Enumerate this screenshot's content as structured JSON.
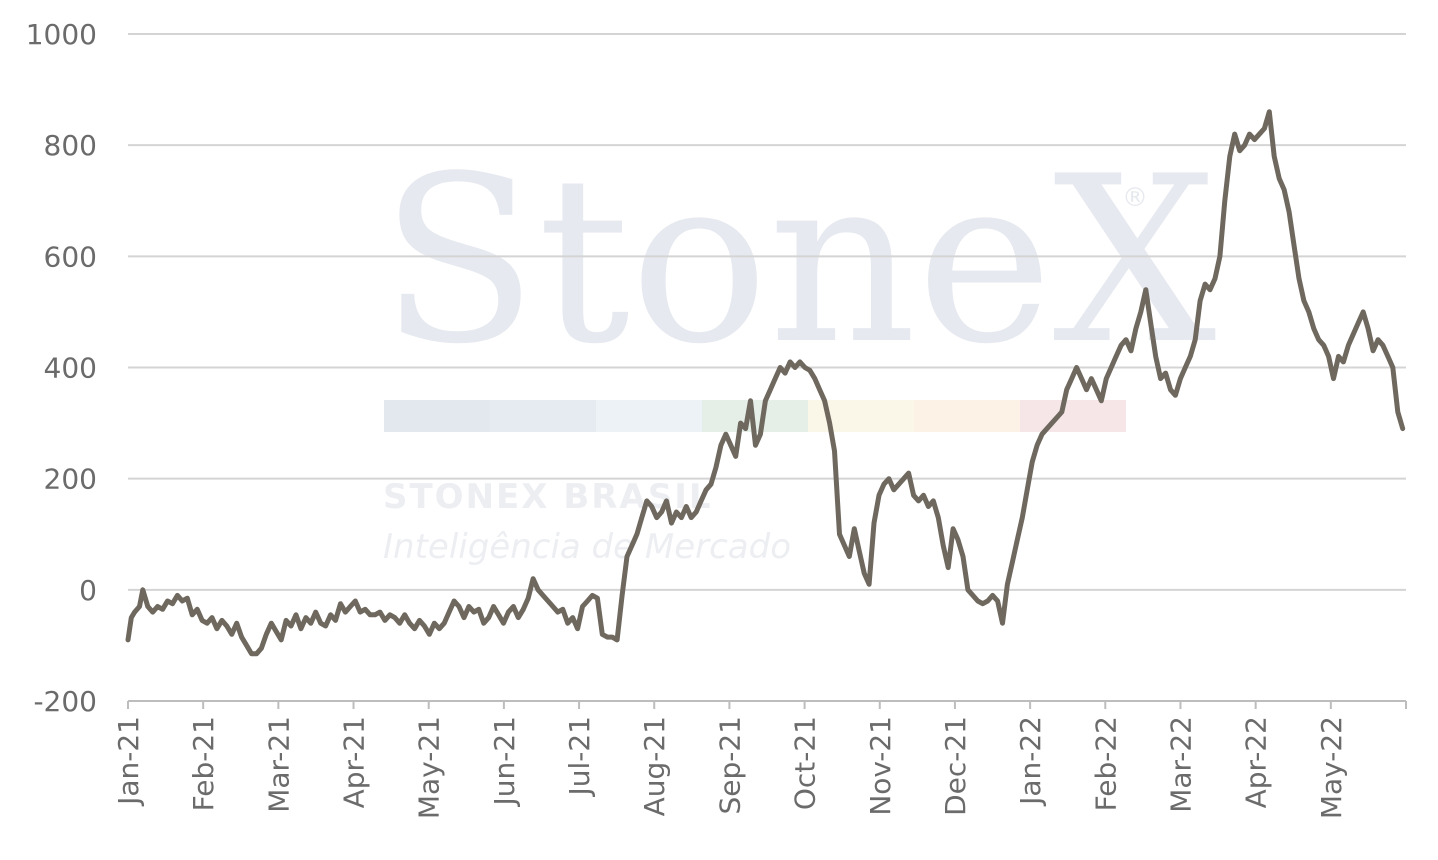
{
  "watermark": {
    "logo": "StoneX",
    "registered": "®",
    "line1": "STONEX BRASIL",
    "line2": "Inteligência de Mercado",
    "colors": [
      "#e3e7ee",
      "#e6ebf1",
      "#edf2f7",
      "#e5eee7",
      "#fbf7e8",
      "#fdf2e6",
      "#f6e6e8"
    ]
  },
  "chart_data": {
    "type": "line",
    "title": "",
    "xlabel": "",
    "ylabel": "",
    "ylim": [
      -200,
      1000
    ],
    "yticks": [
      -200,
      0,
      200,
      400,
      600,
      800,
      1000
    ],
    "ytick_labels": [
      "-200",
      "0",
      "200",
      "400",
      "600",
      "800",
      "1000"
    ],
    "xtick_labels": [
      "Jan-21",
      "Feb-21",
      "Mar-21",
      "Apr-21",
      "May-21",
      "Jun-21",
      "Jul-21",
      "Aug-21",
      "Sep-21",
      "Oct-21",
      "Nov-21",
      "Dec-21",
      "Jan-22",
      "Feb-22",
      "Mar-22",
      "Apr-22",
      "May-22"
    ],
    "grid": true,
    "line_color": "#6e685e",
    "series": [
      {
        "values": [
          [
            0,
            -90
          ],
          [
            0.2,
            -50
          ],
          [
            0.4,
            -40
          ],
          [
            0.7,
            -30
          ],
          [
            0.9,
            0
          ],
          [
            1.2,
            -30
          ],
          [
            1.5,
            -40
          ],
          [
            1.8,
            -30
          ],
          [
            2.1,
            -35
          ],
          [
            2.4,
            -20
          ],
          [
            2.7,
            -25
          ],
          [
            3.0,
            -10
          ],
          [
            3.3,
            -20
          ],
          [
            3.6,
            -15
          ],
          [
            3.9,
            -45
          ],
          [
            4.2,
            -35
          ],
          [
            4.5,
            -55
          ],
          [
            4.8,
            -60
          ],
          [
            5.1,
            -50
          ],
          [
            5.4,
            -70
          ],
          [
            5.7,
            -55
          ],
          [
            6.0,
            -65
          ],
          [
            6.3,
            -80
          ],
          [
            6.6,
            -60
          ],
          [
            6.9,
            -85
          ],
          [
            7.2,
            -100
          ],
          [
            7.5,
            -115
          ],
          [
            7.8,
            -115
          ],
          [
            8.1,
            -105
          ],
          [
            8.4,
            -80
          ],
          [
            8.7,
            -60
          ],
          [
            9.0,
            -75
          ],
          [
            9.3,
            -90
          ],
          [
            9.6,
            -55
          ],
          [
            9.9,
            -65
          ],
          [
            10.2,
            -45
          ],
          [
            10.5,
            -70
          ],
          [
            10.8,
            -50
          ],
          [
            11.1,
            -60
          ],
          [
            11.4,
            -40
          ],
          [
            11.7,
            -60
          ],
          [
            12.0,
            -65
          ],
          [
            12.3,
            -45
          ],
          [
            12.6,
            -55
          ],
          [
            12.9,
            -25
          ],
          [
            13.2,
            -40
          ],
          [
            13.5,
            -30
          ],
          [
            13.8,
            -20
          ],
          [
            14.1,
            -40
          ],
          [
            14.4,
            -35
          ],
          [
            14.7,
            -45
          ],
          [
            15.0,
            -45
          ],
          [
            15.3,
            -40
          ],
          [
            15.6,
            -55
          ],
          [
            15.9,
            -45
          ],
          [
            16.2,
            -50
          ],
          [
            16.5,
            -60
          ],
          [
            16.8,
            -45
          ],
          [
            17.1,
            -60
          ],
          [
            17.4,
            -70
          ],
          [
            17.7,
            -55
          ],
          [
            18.0,
            -65
          ],
          [
            18.3,
            -80
          ],
          [
            18.6,
            -60
          ],
          [
            18.9,
            -70
          ],
          [
            19.2,
            -60
          ],
          [
            19.5,
            -40
          ],
          [
            19.8,
            -20
          ],
          [
            20.1,
            -30
          ],
          [
            20.4,
            -50
          ],
          [
            20.7,
            -30
          ],
          [
            21.0,
            -40
          ],
          [
            21.3,
            -35
          ],
          [
            21.6,
            -60
          ],
          [
            21.9,
            -50
          ],
          [
            22.2,
            -30
          ],
          [
            22.5,
            -45
          ],
          [
            22.8,
            -60
          ],
          [
            23.1,
            -40
          ],
          [
            23.4,
            -30
          ],
          [
            23.7,
            -50
          ],
          [
            24.0,
            -35
          ],
          [
            24.3,
            -15
          ],
          [
            24.6,
            20
          ],
          [
            24.9,
            0
          ],
          [
            25.2,
            -10
          ],
          [
            25.5,
            -20
          ],
          [
            25.8,
            -30
          ],
          [
            26.1,
            -40
          ],
          [
            26.4,
            -35
          ],
          [
            26.7,
            -60
          ],
          [
            27.0,
            -50
          ],
          [
            27.3,
            -70
          ],
          [
            27.6,
            -30
          ],
          [
            27.9,
            -20
          ],
          [
            28.2,
            -10
          ],
          [
            28.5,
            -15
          ],
          [
            28.8,
            -80
          ],
          [
            29.1,
            -85
          ],
          [
            29.4,
            -85
          ],
          [
            29.7,
            -90
          ],
          [
            30.0,
            -10
          ],
          [
            30.3,
            60
          ],
          [
            30.6,
            80
          ],
          [
            30.9,
            100
          ],
          [
            31.2,
            130
          ],
          [
            31.5,
            160
          ],
          [
            31.8,
            150
          ],
          [
            32.1,
            130
          ],
          [
            32.4,
            140
          ],
          [
            32.7,
            160
          ],
          [
            33.0,
            120
          ],
          [
            33.3,
            140
          ],
          [
            33.6,
            130
          ],
          [
            33.9,
            150
          ],
          [
            34.2,
            130
          ],
          [
            34.5,
            140
          ],
          [
            34.8,
            160
          ],
          [
            35.1,
            180
          ],
          [
            35.4,
            190
          ],
          [
            35.7,
            220
          ],
          [
            36.0,
            260
          ],
          [
            36.3,
            280
          ],
          [
            36.6,
            260
          ],
          [
            36.9,
            240
          ],
          [
            37.2,
            300
          ],
          [
            37.5,
            290
          ],
          [
            37.8,
            340
          ],
          [
            38.1,
            260
          ],
          [
            38.4,
            280
          ],
          [
            38.7,
            340
          ],
          [
            39.0,
            360
          ],
          [
            39.3,
            380
          ],
          [
            39.6,
            400
          ],
          [
            39.9,
            390
          ],
          [
            40.2,
            410
          ],
          [
            40.5,
            400
          ],
          [
            40.8,
            410
          ],
          [
            41.1,
            400
          ],
          [
            41.4,
            395
          ],
          [
            41.7,
            380
          ],
          [
            42.0,
            360
          ],
          [
            42.3,
            340
          ],
          [
            42.6,
            300
          ],
          [
            42.9,
            250
          ],
          [
            43.2,
            100
          ],
          [
            43.5,
            80
          ],
          [
            43.8,
            60
          ],
          [
            44.1,
            110
          ],
          [
            44.4,
            70
          ],
          [
            44.7,
            30
          ],
          [
            45.0,
            10
          ],
          [
            45.3,
            120
          ],
          [
            45.6,
            170
          ],
          [
            45.9,
            190
          ],
          [
            46.2,
            200
          ],
          [
            46.5,
            180
          ],
          [
            46.8,
            190
          ],
          [
            47.1,
            200
          ],
          [
            47.4,
            210
          ],
          [
            47.7,
            170
          ],
          [
            48.0,
            160
          ],
          [
            48.3,
            170
          ],
          [
            48.6,
            150
          ],
          [
            48.9,
            160
          ],
          [
            49.2,
            130
          ],
          [
            49.5,
            80
          ],
          [
            49.8,
            40
          ],
          [
            50.1,
            110
          ],
          [
            50.4,
            90
          ],
          [
            50.7,
            60
          ],
          [
            51.0,
            0
          ],
          [
            51.3,
            -10
          ],
          [
            51.6,
            -20
          ],
          [
            51.9,
            -25
          ],
          [
            52.2,
            -20
          ],
          [
            52.5,
            -10
          ],
          [
            52.8,
            -20
          ],
          [
            53.1,
            -60
          ],
          [
            53.4,
            10
          ],
          [
            53.7,
            50
          ],
          [
            54.0,
            90
          ],
          [
            54.3,
            130
          ],
          [
            54.6,
            180
          ],
          [
            54.9,
            230
          ],
          [
            55.2,
            260
          ],
          [
            55.5,
            280
          ],
          [
            55.8,
            290
          ],
          [
            56.1,
            300
          ],
          [
            56.4,
            310
          ],
          [
            56.7,
            320
          ],
          [
            57.0,
            360
          ],
          [
            57.3,
            380
          ],
          [
            57.6,
            400
          ],
          [
            57.9,
            380
          ],
          [
            58.2,
            360
          ],
          [
            58.5,
            380
          ],
          [
            58.8,
            360
          ],
          [
            59.1,
            340
          ],
          [
            59.4,
            380
          ],
          [
            59.7,
            400
          ],
          [
            60.0,
            420
          ],
          [
            60.3,
            440
          ],
          [
            60.6,
            450
          ],
          [
            60.9,
            430
          ],
          [
            61.2,
            470
          ],
          [
            61.5,
            500
          ],
          [
            61.8,
            540
          ],
          [
            62.1,
            480
          ],
          [
            62.4,
            420
          ],
          [
            62.7,
            380
          ],
          [
            63.0,
            390
          ],
          [
            63.3,
            360
          ],
          [
            63.6,
            350
          ],
          [
            63.9,
            380
          ],
          [
            64.2,
            400
          ],
          [
            64.5,
            420
          ],
          [
            64.8,
            450
          ],
          [
            65.1,
            520
          ],
          [
            65.4,
            550
          ],
          [
            65.7,
            540
          ],
          [
            66.0,
            560
          ],
          [
            66.3,
            600
          ],
          [
            66.6,
            700
          ],
          [
            66.9,
            780
          ],
          [
            67.2,
            820
          ],
          [
            67.5,
            790
          ],
          [
            67.8,
            800
          ],
          [
            68.1,
            820
          ],
          [
            68.4,
            810
          ],
          [
            68.7,
            820
          ],
          [
            69.0,
            830
          ],
          [
            69.3,
            860
          ],
          [
            69.6,
            780
          ],
          [
            69.9,
            740
          ],
          [
            70.2,
            720
          ],
          [
            70.5,
            680
          ],
          [
            70.8,
            620
          ],
          [
            71.1,
            560
          ],
          [
            71.4,
            520
          ],
          [
            71.7,
            500
          ],
          [
            72.0,
            470
          ],
          [
            72.3,
            450
          ],
          [
            72.6,
            440
          ],
          [
            72.9,
            420
          ],
          [
            73.2,
            380
          ],
          [
            73.5,
            420
          ],
          [
            73.8,
            410
          ],
          [
            74.1,
            440
          ],
          [
            74.4,
            460
          ],
          [
            74.7,
            480
          ],
          [
            75.0,
            500
          ],
          [
            75.3,
            470
          ],
          [
            75.6,
            430
          ],
          [
            75.9,
            450
          ],
          [
            76.2,
            440
          ],
          [
            76.5,
            420
          ],
          [
            76.8,
            400
          ],
          [
            77.1,
            320
          ],
          [
            77.4,
            290
          ]
        ]
      }
    ]
  }
}
